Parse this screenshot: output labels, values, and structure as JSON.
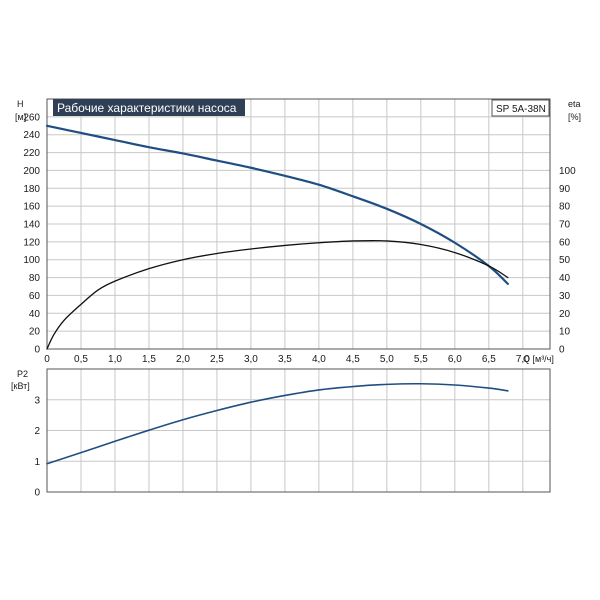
{
  "colors": {
    "grid": "#c8c8c8",
    "frame": "#555555",
    "title_bg": "#2e3f56",
    "head_curve": "#1f4e82",
    "eff_curve": "#111111",
    "power_curve": "#1f4e82",
    "pump_curve": "#888888"
  },
  "chart_data": [
    {
      "type": "line",
      "title": "Рабочие характеристики насоса",
      "model": "SP 5A-38N",
      "xlabel": "Q [м³/ч]",
      "ylabel": "H",
      "ylabel_unit": "[м]",
      "y2label": "eta",
      "y2label_unit": "[%]",
      "xlim": [
        0,
        7.4
      ],
      "ylim": [
        0,
        280
      ],
      "y2lim": [
        0,
        140
      ],
      "x_ticks": [
        "0",
        "0,5",
        "1,0",
        "1,5",
        "2,0",
        "2,5",
        "3,0",
        "3,5",
        "4,0",
        "4,5",
        "5,0",
        "5,5",
        "6,0",
        "6,5",
        "7,0"
      ],
      "x_tick_values": [
        0,
        0.5,
        1.0,
        1.5,
        2.0,
        2.5,
        3.0,
        3.5,
        4.0,
        4.5,
        5.0,
        5.5,
        6.0,
        6.5,
        7.0
      ],
      "y_ticks": [
        0,
        20,
        40,
        60,
        80,
        100,
        120,
        140,
        160,
        180,
        200,
        220,
        240,
        260
      ],
      "y2_ticks": [
        0,
        10,
        20,
        30,
        40,
        50,
        60,
        70,
        80,
        90,
        100
      ],
      "grid": true,
      "series": [
        {
          "id": "head",
          "axis": "left",
          "x": [
            0,
            0.5,
            1.0,
            1.5,
            2.0,
            2.5,
            3.0,
            3.5,
            4.0,
            4.5,
            5.0,
            5.5,
            6.0,
            6.5,
            6.78
          ],
          "values": [
            250,
            242,
            234,
            226,
            219,
            211,
            203,
            194,
            184,
            171,
            157,
            140,
            119,
            93,
            73
          ]
        },
        {
          "id": "efficiency",
          "axis": "right",
          "x": [
            0,
            0.1,
            0.25,
            0.5,
            0.75,
            1.0,
            1.5,
            2.0,
            2.5,
            3.0,
            3.5,
            4.0,
            4.5,
            5.0,
            5.5,
            6.0,
            6.5,
            6.78
          ],
          "values": [
            0,
            8,
            16,
            25,
            33,
            38,
            45,
            50,
            53.5,
            56,
            58,
            59.5,
            60.5,
            60.5,
            58.5,
            54,
            46.5,
            40
          ]
        }
      ]
    },
    {
      "type": "line",
      "ylabel": "P2",
      "ylabel_unit": "[кВт]",
      "xlim": [
        0,
        7.4
      ],
      "ylim": [
        0,
        4
      ],
      "y_ticks": [
        0,
        1,
        2,
        3
      ],
      "grid": true,
      "series": [
        {
          "id": "power",
          "x": [
            0,
            0.5,
            1.0,
            1.5,
            2.0,
            2.5,
            3.0,
            3.5,
            4.0,
            4.5,
            5.0,
            5.5,
            6.0,
            6.5,
            6.78
          ],
          "values": [
            0.92,
            1.28,
            1.65,
            2.01,
            2.35,
            2.65,
            2.92,
            3.14,
            3.32,
            3.43,
            3.5,
            3.52,
            3.48,
            3.38,
            3.29
          ]
        }
      ]
    }
  ]
}
